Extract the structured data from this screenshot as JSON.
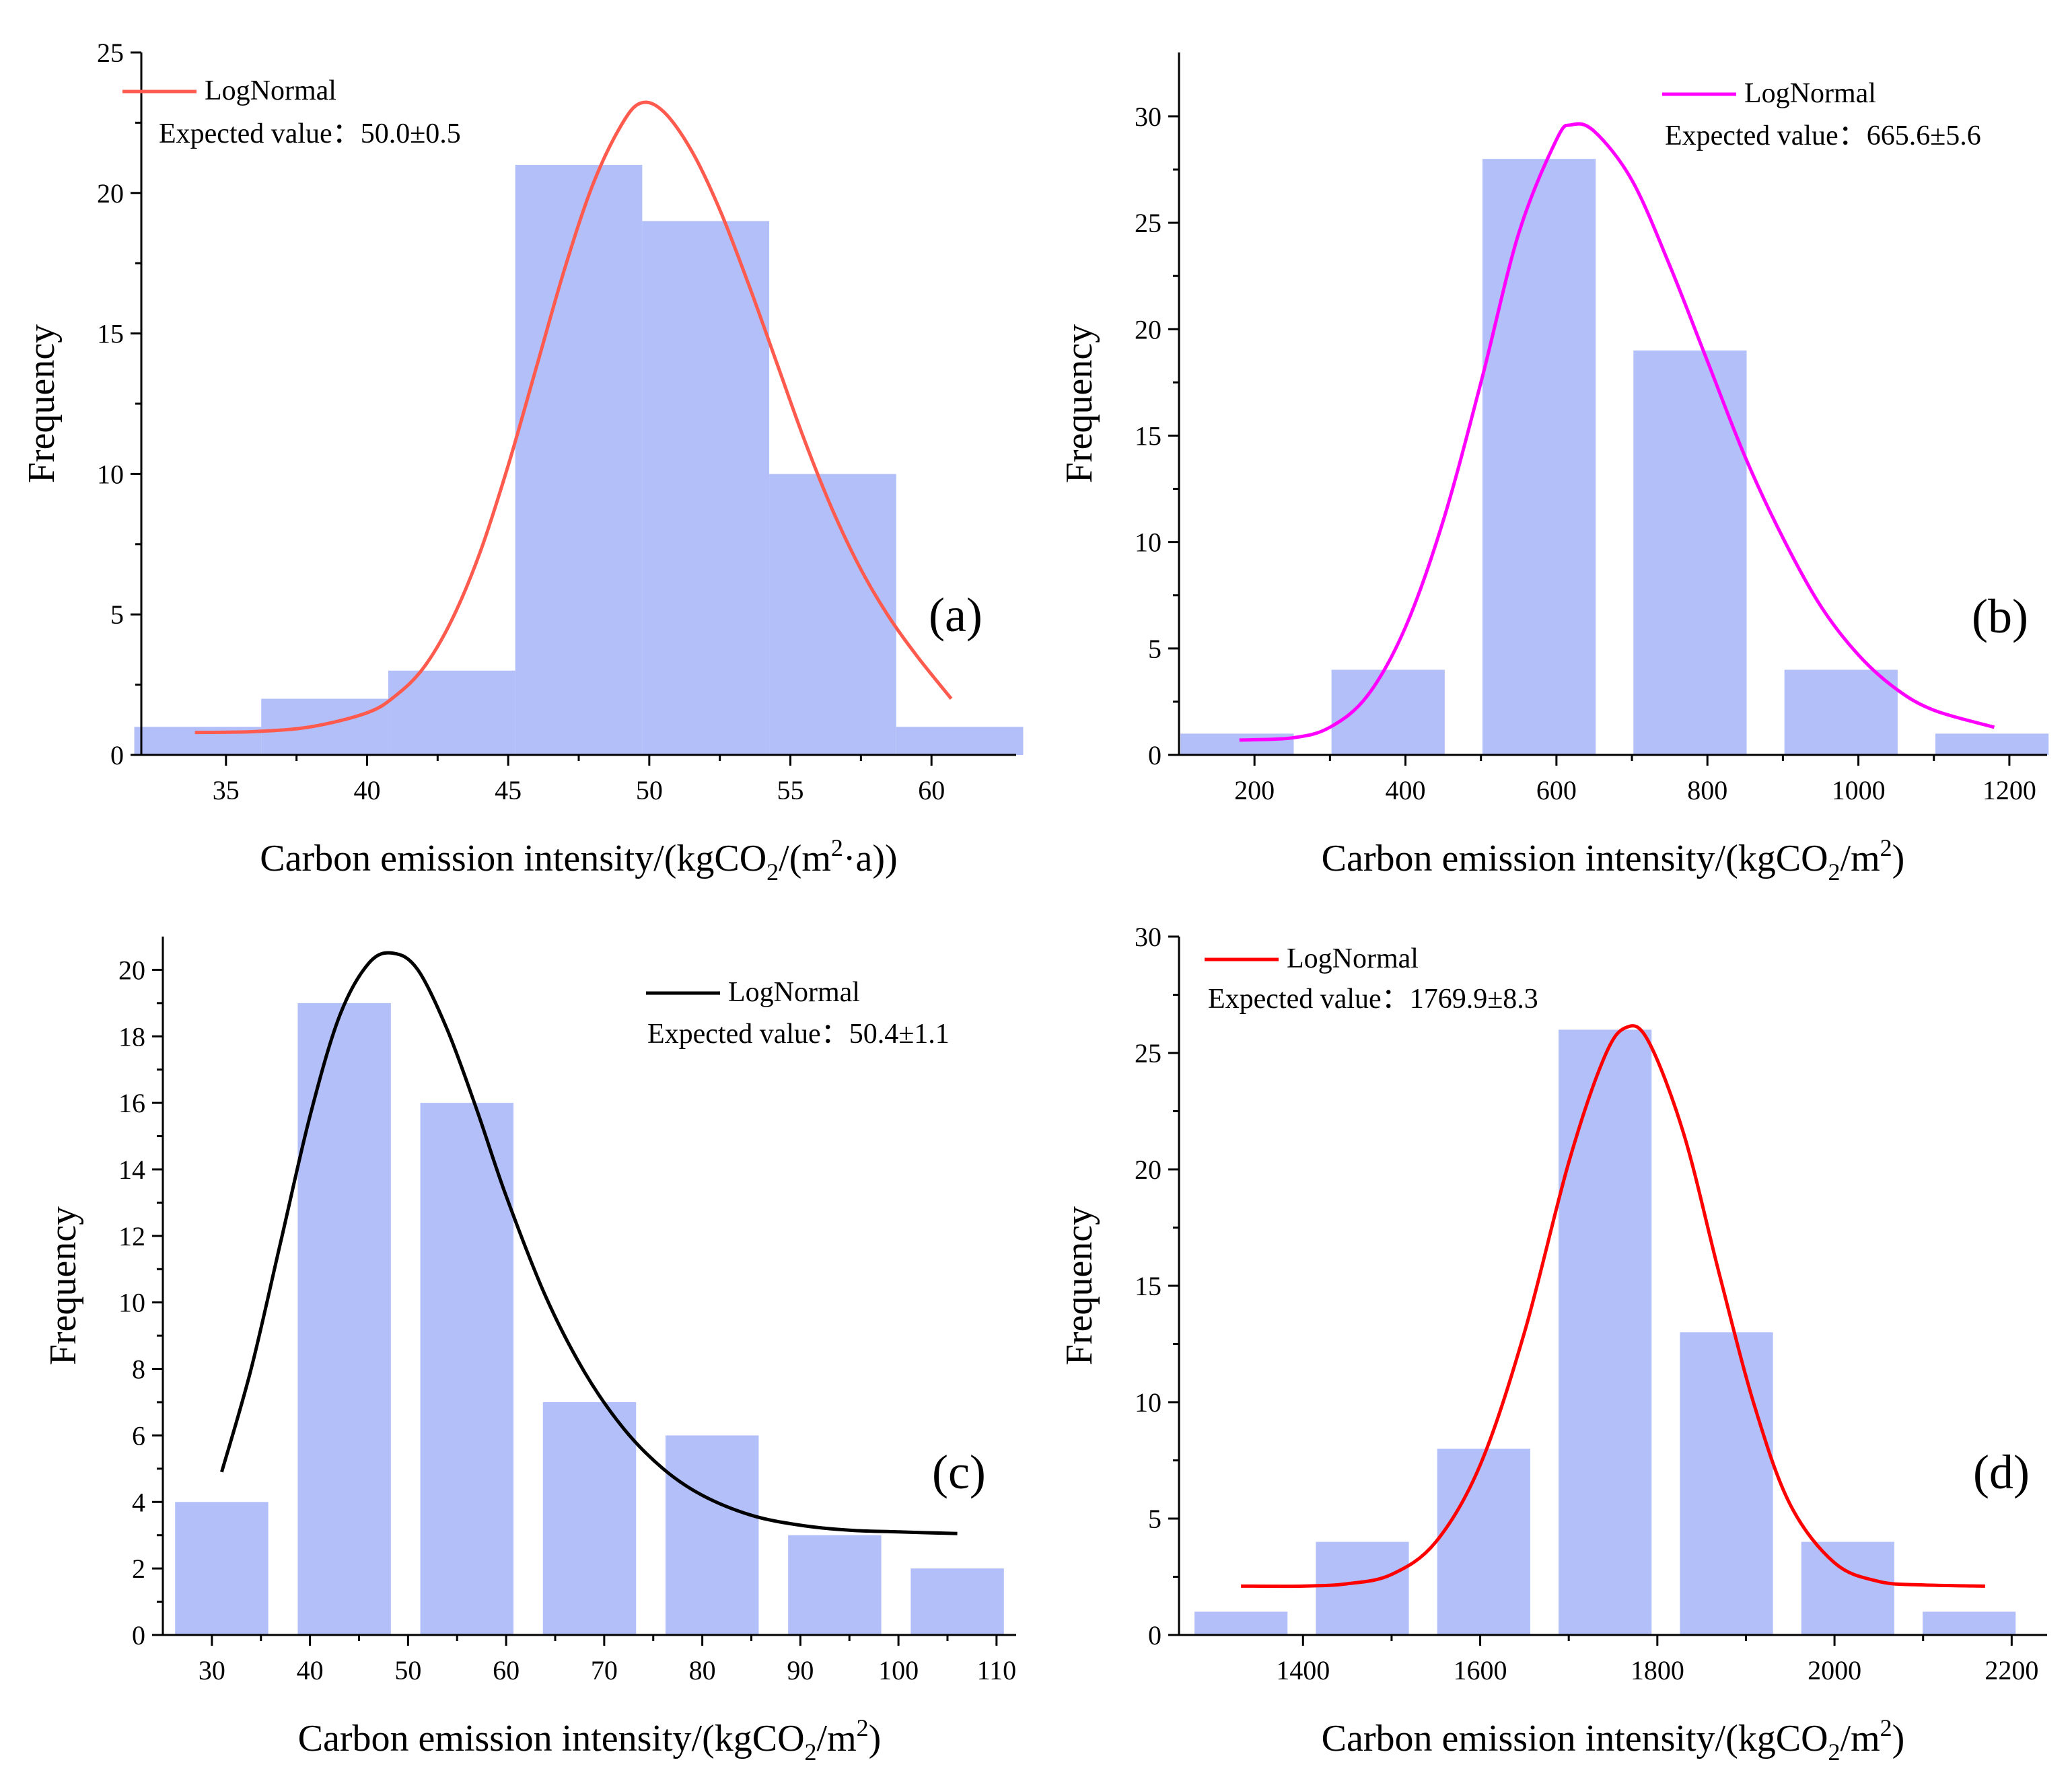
{
  "chart_data": [
    {
      "type": "bar",
      "panel_label": "(a)",
      "xlabel": "Carbon emission intensity/(kgCO",
      "xlabel_sub": "2",
      "xlabel_mid": "/(m",
      "xlabel_sup": "2",
      "xlabel_end": "·a))",
      "ylabel": "Frequency",
      "xlim": [
        32,
        63
      ],
      "ylim": [
        0,
        25
      ],
      "xticks": [
        "35",
        "40",
        "45",
        "50",
        "55",
        "60"
      ],
      "yticks": [
        "0",
        "5",
        "10",
        "15",
        "20",
        "25"
      ],
      "bin_width": 4.5,
      "bars": [
        {
          "center": 34.0,
          "value": 1
        },
        {
          "center": 38.5,
          "value": 2
        },
        {
          "center": 43.0,
          "value": 3
        },
        {
          "center": 47.5,
          "value": 21
        },
        {
          "center": 52.0,
          "value": 19
        },
        {
          "center": 56.5,
          "value": 10
        },
        {
          "center": 61.0,
          "value": 1
        }
      ],
      "curve": {
        "name": "LogNormal",
        "color": "#ff5a4e",
        "x": [
          33.9,
          36,
          38,
          40,
          41,
          42,
          43,
          44,
          45,
          46,
          47,
          48,
          49,
          49.7,
          50.5,
          51.5,
          52.5,
          53.5,
          54.5,
          55.5,
          56.5,
          57.5,
          58.5,
          59.5,
          60.7
        ],
        "y": [
          0.8,
          0.83,
          1.0,
          1.5,
          2.1,
          3.1,
          4.8,
          7.2,
          10.3,
          13.8,
          17.3,
          20.3,
          22.4,
          23.2,
          22.9,
          21.5,
          19.4,
          16.8,
          14.0,
          11.2,
          8.7,
          6.6,
          4.9,
          3.5,
          2.0
        ]
      },
      "legend_label": "LogNormal",
      "annotation": "Expected value：50.0±0.5"
    },
    {
      "type": "bar",
      "panel_label": "(b)",
      "xlabel": "Carbon emission intensity/(kgCO",
      "xlabel_sub": "2",
      "xlabel_mid": "/m",
      "xlabel_sup": "2",
      "xlabel_end": ")",
      "ylabel": "Frequency",
      "xlim": [
        100,
        1250
      ],
      "ylim": [
        0,
        33
      ],
      "xticks": [
        "200",
        "400",
        "600",
        "800",
        "1000",
        "1200"
      ],
      "yticks": [
        "0",
        "5",
        "10",
        "15",
        "20",
        "25",
        "30"
      ],
      "bin_width": 150,
      "bars": [
        {
          "center": 177,
          "value": 1
        },
        {
          "center": 377,
          "value": 4
        },
        {
          "center": 577,
          "value": 28
        },
        {
          "center": 777,
          "value": 19
        },
        {
          "center": 977,
          "value": 4
        },
        {
          "center": 1177,
          "value": 1
        }
      ],
      "curve": {
        "name": "LogNormal",
        "color": "#ff00ff",
        "x": [
          180,
          250,
          300,
          350,
          400,
          450,
          500,
          550,
          600,
          620,
          650,
          700,
          750,
          800,
          850,
          900,
          950,
          1000,
          1050,
          1100,
          1180
        ],
        "y": [
          0.7,
          0.8,
          1.3,
          2.8,
          6.0,
          11.0,
          17.5,
          24.5,
          28.9,
          29.6,
          29.3,
          27.0,
          23.0,
          18.5,
          14.0,
          10.2,
          7.0,
          4.7,
          3.1,
          2.1,
          1.3
        ]
      },
      "legend_label": "LogNormal",
      "annotation": "Expected value：665.6±5.6"
    },
    {
      "type": "bar",
      "panel_label": "(c)",
      "xlabel": "Carbon emission intensity/(kgCO",
      "xlabel_sub": "2",
      "xlabel_mid": "/m",
      "xlabel_sup": "2",
      "xlabel_end": ")",
      "ylabel": "Frequency",
      "xlim": [
        25,
        112
      ],
      "ylim": [
        0,
        21
      ],
      "xticks": [
        "30",
        "40",
        "50",
        "60",
        "70",
        "80",
        "90",
        "100",
        "110"
      ],
      "yticks": [
        "0",
        "2",
        "4",
        "6",
        "8",
        "10",
        "12",
        "14",
        "16",
        "18",
        "20"
      ],
      "bin_width": 9.5,
      "bars": [
        {
          "center": 31,
          "value": 4
        },
        {
          "center": 43.5,
          "value": 19
        },
        {
          "center": 56,
          "value": 16
        },
        {
          "center": 68.5,
          "value": 7
        },
        {
          "center": 81,
          "value": 6
        },
        {
          "center": 93.5,
          "value": 3
        },
        {
          "center": 106,
          "value": 2
        }
      ],
      "curve": {
        "name": "LogNormal",
        "color": "#000000",
        "x": [
          31,
          34,
          37,
          40,
          43,
          46,
          48.5,
          51,
          54,
          57,
          60,
          64,
          68,
          72,
          76,
          80,
          85,
          90,
          95,
          100,
          106
        ],
        "y": [
          4.9,
          8.0,
          11.8,
          15.6,
          18.6,
          20.2,
          20.5,
          20.0,
          18.2,
          15.8,
          13.2,
          10.2,
          7.9,
          6.2,
          5.0,
          4.2,
          3.6,
          3.3,
          3.15,
          3.1,
          3.05
        ]
      },
      "legend_label": "LogNormal",
      "annotation": "Expected value：50.4±1.1"
    },
    {
      "type": "bar",
      "panel_label": "(d)",
      "xlabel": "Carbon emission intensity/(kgCO",
      "xlabel_sub": "2",
      "xlabel_mid": "/m",
      "xlabel_sup": "2",
      "xlabel_end": ")",
      "ylabel": "Frequency",
      "xlim": [
        1260,
        2240
      ],
      "ylim": [
        0,
        30
      ],
      "xticks": [
        "1400",
        "1600",
        "1800",
        "2000",
        "2200"
      ],
      "yticks": [
        "0",
        "5",
        "10",
        "15",
        "20",
        "25",
        "30"
      ],
      "bin_width": 105,
      "bars": [
        {
          "center": 1330,
          "value": 1
        },
        {
          "center": 1467,
          "value": 4
        },
        {
          "center": 1604,
          "value": 8
        },
        {
          "center": 1741,
          "value": 26
        },
        {
          "center": 1878,
          "value": 13
        },
        {
          "center": 2015,
          "value": 4
        },
        {
          "center": 2152,
          "value": 1
        }
      ],
      "curve": {
        "name": "LogNormal",
        "color": "#ff0000",
        "x": [
          1330,
          1400,
          1450,
          1500,
          1550,
          1600,
          1650,
          1700,
          1740,
          1765,
          1790,
          1830,
          1870,
          1910,
          1950,
          2000,
          2050,
          2100,
          2170
        ],
        "y": [
          2.1,
          2.1,
          2.2,
          2.6,
          4.0,
          7.3,
          13.0,
          20.3,
          24.8,
          26.1,
          25.5,
          21.5,
          15.5,
          9.8,
          5.6,
          3.1,
          2.3,
          2.15,
          2.1
        ]
      },
      "legend_label": "LogNormal",
      "annotation": "Expected value：1769.9±8.3"
    }
  ]
}
